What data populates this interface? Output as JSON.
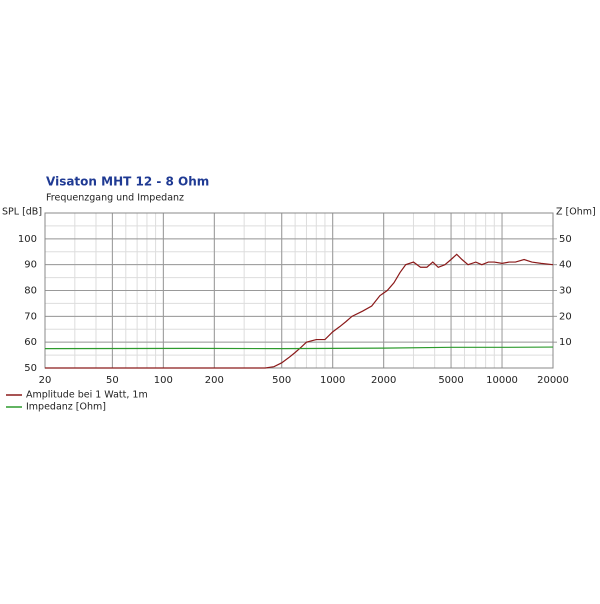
{
  "chart_data": {
    "type": "line",
    "title": "Visaton MHT 12 - 8 Ohm",
    "subtitle": "Frequenzgang und Impedanz",
    "y_label": "SPL [dB]",
    "y2_label": "Z [Ohm]",
    "xscale": "log",
    "grid": true,
    "minor_grid": true,
    "legend": "bottom-left",
    "xlim": [
      20,
      20000
    ],
    "xticks": [
      20,
      50,
      100,
      200,
      500,
      1000,
      2000,
      5000,
      10000,
      20000
    ],
    "ylim": [
      50,
      110
    ],
    "yticks": [
      50,
      60,
      70,
      80,
      90,
      100
    ],
    "y2lim": [
      0,
      60
    ],
    "y2ticks": [
      10,
      20,
      30,
      40,
      50
    ],
    "series": [
      {
        "name": "Amplitude bei 1 Watt, 1m",
        "color": "#8b1a1a",
        "x": [
          20,
          400,
          450,
          500,
          550,
          600,
          650,
          700,
          800,
          900,
          1000,
          1100,
          1200,
          1300,
          1500,
          1700,
          1900,
          2100,
          2300,
          2500,
          2700,
          3000,
          3300,
          3600,
          3900,
          4200,
          4600,
          5000,
          5400,
          5800,
          6300,
          7000,
          7600,
          8300,
          9000,
          10000,
          11000,
          12000,
          13500,
          15000,
          17000,
          20000
        ],
        "values": [
          50,
          50,
          50.5,
          52,
          54,
          56,
          58,
          60,
          61,
          61,
          64,
          66,
          68,
          70,
          72,
          74,
          78,
          80,
          83,
          87,
          90,
          91,
          89,
          89,
          91,
          89,
          90,
          92,
          94,
          92,
          90,
          91,
          90,
          91,
          91,
          90.5,
          91,
          91,
          92,
          91,
          90.5,
          90
        ]
      },
      {
        "name": "Impedanz [Ohm]",
        "color": "#2e9b2e",
        "axis": "y2",
        "x": [
          20,
          150,
          500,
          1000,
          2000,
          5000,
          10000,
          20000
        ],
        "values": [
          7.5,
          7.6,
          7.5,
          7.6,
          7.7,
          8,
          8,
          8.1
        ]
      }
    ]
  }
}
